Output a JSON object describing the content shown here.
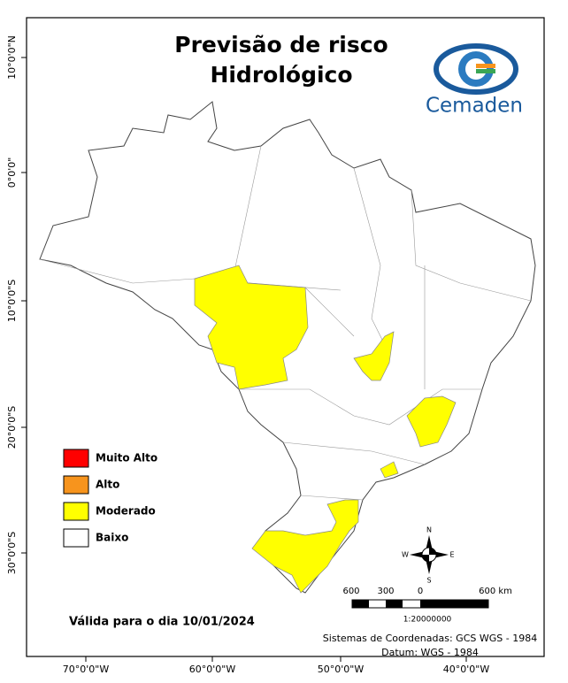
{
  "header": {
    "title": [
      "Previsão de risco",
      "Hidrológico"
    ],
    "logo": "Cemaden"
  },
  "graticule": {
    "lat": [
      "10°0'0\"N",
      "0°0'0\"",
      "10°0'0\"S",
      "20°0'0\"S",
      "30°0'0\"S"
    ],
    "lon": [
      "70°0'0\"W",
      "60°0'0\"W",
      "50°0'0\"W",
      "40°0'0\"W"
    ]
  },
  "legend": {
    "items": [
      {
        "label": "Muito Alto",
        "color": "#ff0000"
      },
      {
        "label": "Alto",
        "color": "#f7941d"
      },
      {
        "label": "Moderado",
        "color": "#ffff00"
      },
      {
        "label": "Baixo",
        "color": "#ffffff"
      }
    ]
  },
  "compass": {
    "n": "N",
    "s": "S",
    "e": "E",
    "w": "W"
  },
  "scale": {
    "labels": [
      "600",
      "300",
      "0",
      "600 km"
    ],
    "ratio": "1:20000000"
  },
  "footer": {
    "valid": "Válida para o dia 10/01/2024",
    "system": "Sistemas de Coordenadas: GCS WGS - 1984",
    "datum": "Datum: WGS - 1984"
  }
}
